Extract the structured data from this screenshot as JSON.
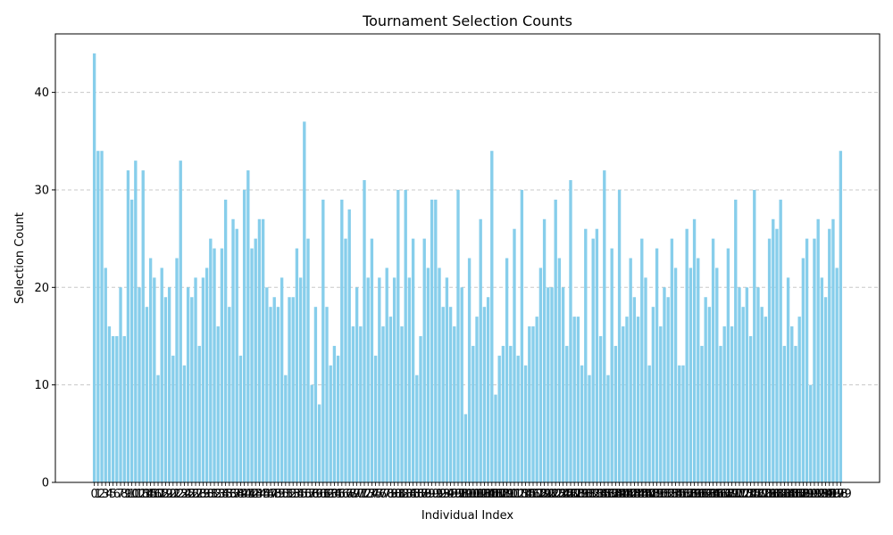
{
  "chart_data": {
    "type": "bar",
    "title": "Tournament Selection Counts",
    "xlabel": "Individual Index",
    "ylabel": "Selection Count",
    "ylim": [
      0,
      46
    ],
    "yticks": [
      0,
      10,
      20,
      30,
      40
    ],
    "grid": "y-dashed",
    "bar_color": "#87ceeb",
    "grid_color": "#c8c8c8",
    "x_start": 0,
    "x_tick_step": 1,
    "values": [
      44,
      34,
      34,
      22,
      16,
      15,
      15,
      20,
      15,
      32,
      29,
      33,
      20,
      32,
      18,
      23,
      21,
      11,
      22,
      19,
      20,
      13,
      23,
      33,
      12,
      20,
      19,
      21,
      14,
      21,
      22,
      25,
      24,
      16,
      24,
      29,
      18,
      27,
      26,
      13,
      30,
      32,
      24,
      25,
      27,
      27,
      20,
      18,
      19,
      18,
      21,
      11,
      19,
      19,
      24,
      21,
      37,
      25,
      10,
      18,
      8,
      29,
      18,
      12,
      14,
      13,
      29,
      25,
      28,
      16,
      20,
      16,
      31,
      21,
      25,
      13,
      21,
      16,
      22,
      17,
      21,
      30,
      16,
      30,
      21,
      25,
      11,
      15,
      25,
      22,
      29,
      29,
      22,
      18,
      21,
      18,
      16,
      30,
      20,
      7,
      23,
      14,
      17,
      27,
      18,
      19,
      34,
      9,
      13,
      14,
      23,
      14,
      26,
      13,
      30,
      12,
      16,
      16,
      17,
      22,
      27,
      20,
      20,
      29,
      23,
      20,
      14,
      31,
      17,
      17,
      12,
      26,
      11,
      25,
      26,
      15,
      32,
      11,
      24,
      14,
      30,
      16,
      17,
      23,
      19,
      17,
      25,
      21,
      12,
      18,
      24,
      16,
      20,
      19,
      25,
      22,
      12,
      12,
      26,
      22,
      27,
      23,
      14,
      19,
      18,
      25,
      22,
      14,
      16,
      24,
      16,
      29,
      20,
      18,
      20,
      15,
      30,
      20,
      18,
      17,
      25,
      27,
      26,
      29,
      14,
      21,
      16,
      14,
      17,
      23,
      25,
      10,
      25,
      27,
      21,
      19,
      26,
      27,
      22,
      34
    ]
  }
}
